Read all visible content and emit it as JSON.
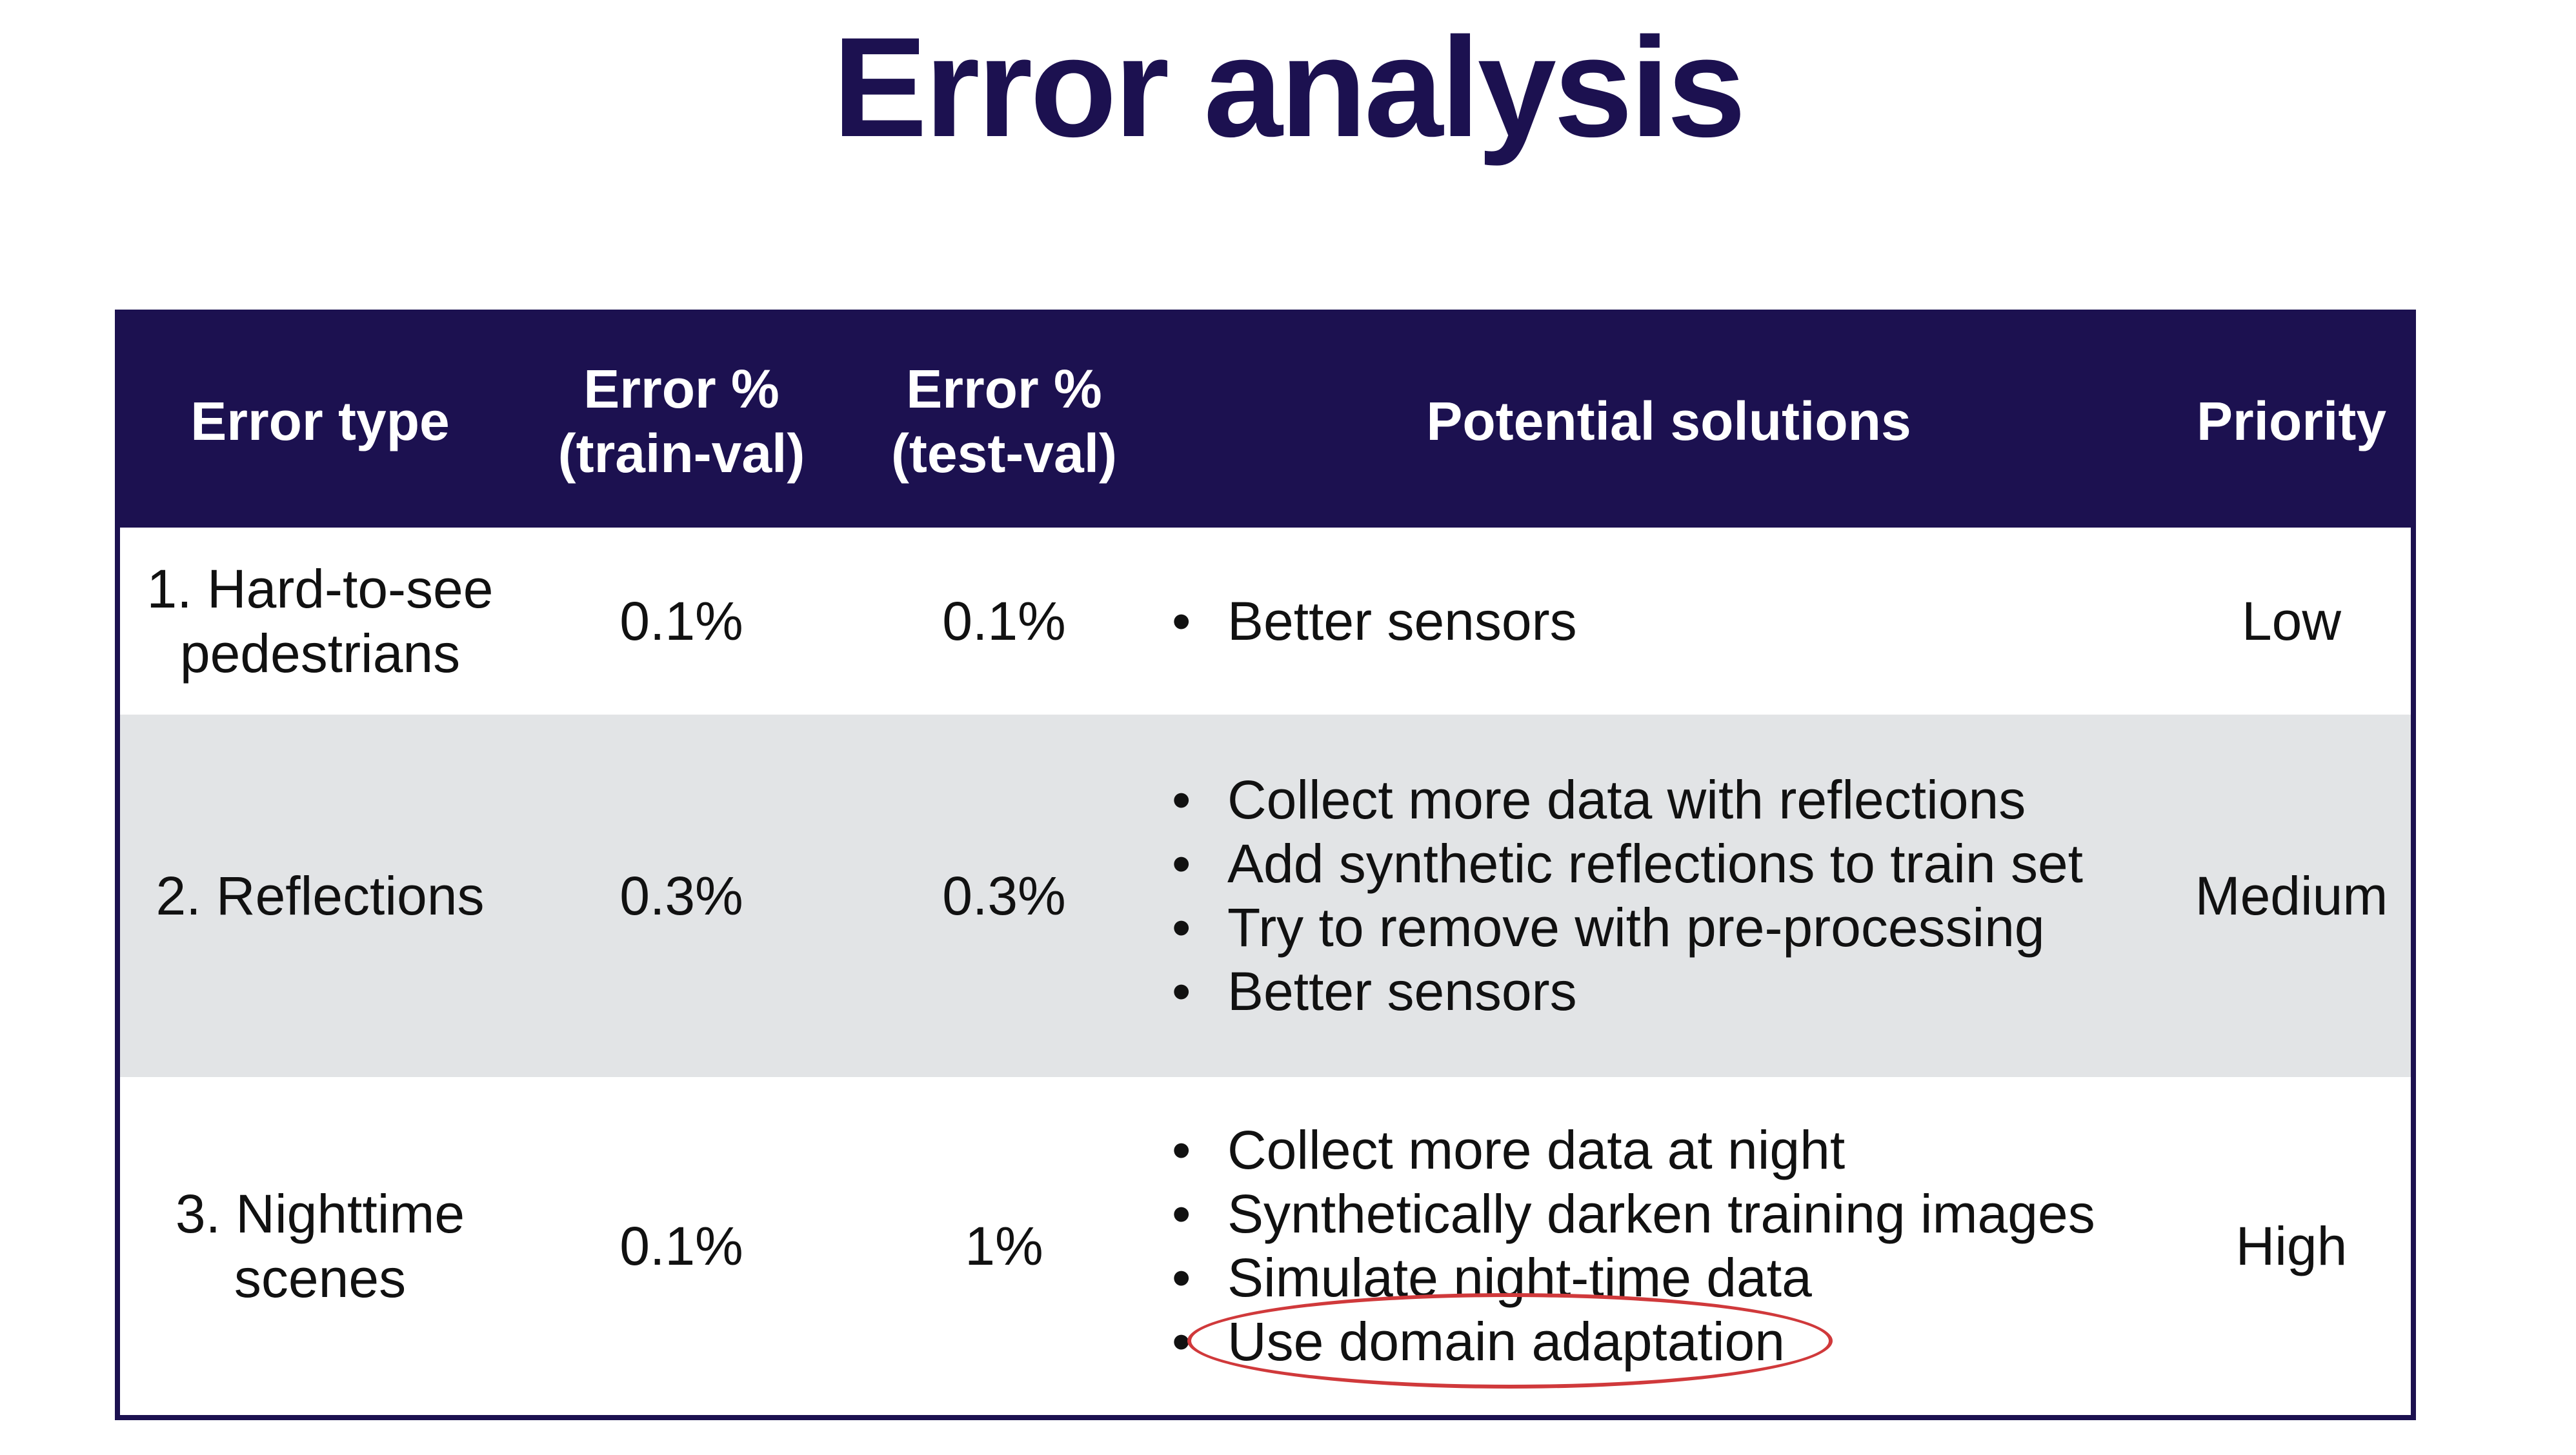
{
  "title": "Error analysis",
  "table": {
    "headers": {
      "error_type": "Error type",
      "train_val_line1": "Error %",
      "train_val_line2": "(train-val)",
      "test_val_line1": "Error %",
      "test_val_line2": "(test-val)",
      "solutions": "Potential solutions",
      "priority": "Priority"
    },
    "rows": [
      {
        "error_type_line1": "1. Hard-to-see",
        "error_type_line2": "pedestrians",
        "train_val": "0.1%",
        "test_val": "0.1%",
        "solutions": [
          "Better sensors"
        ],
        "priority": "Low"
      },
      {
        "error_type_line1": "2. Reflections",
        "error_type_line2": "",
        "train_val": "0.3%",
        "test_val": "0.3%",
        "solutions": [
          "Collect more data with reflections",
          "Add synthetic reflections to train set",
          "Try to remove with pre-processing",
          "Better sensors"
        ],
        "priority": "Medium"
      },
      {
        "error_type_line1": "3. Nighttime",
        "error_type_line2": "scenes",
        "train_val": "0.1%",
        "test_val": "1%",
        "solutions": [
          "Collect more data at night",
          "Synthetically darken training images",
          "Simulate night-time data",
          "Use domain adaptation"
        ],
        "priority": "High"
      }
    ],
    "bullet_glyph": "•"
  },
  "colors": {
    "header_bg": "#1c1150",
    "title": "#1c1150",
    "shaded_row": "#e2e4e6",
    "circle_annotation": "#d0393b"
  }
}
